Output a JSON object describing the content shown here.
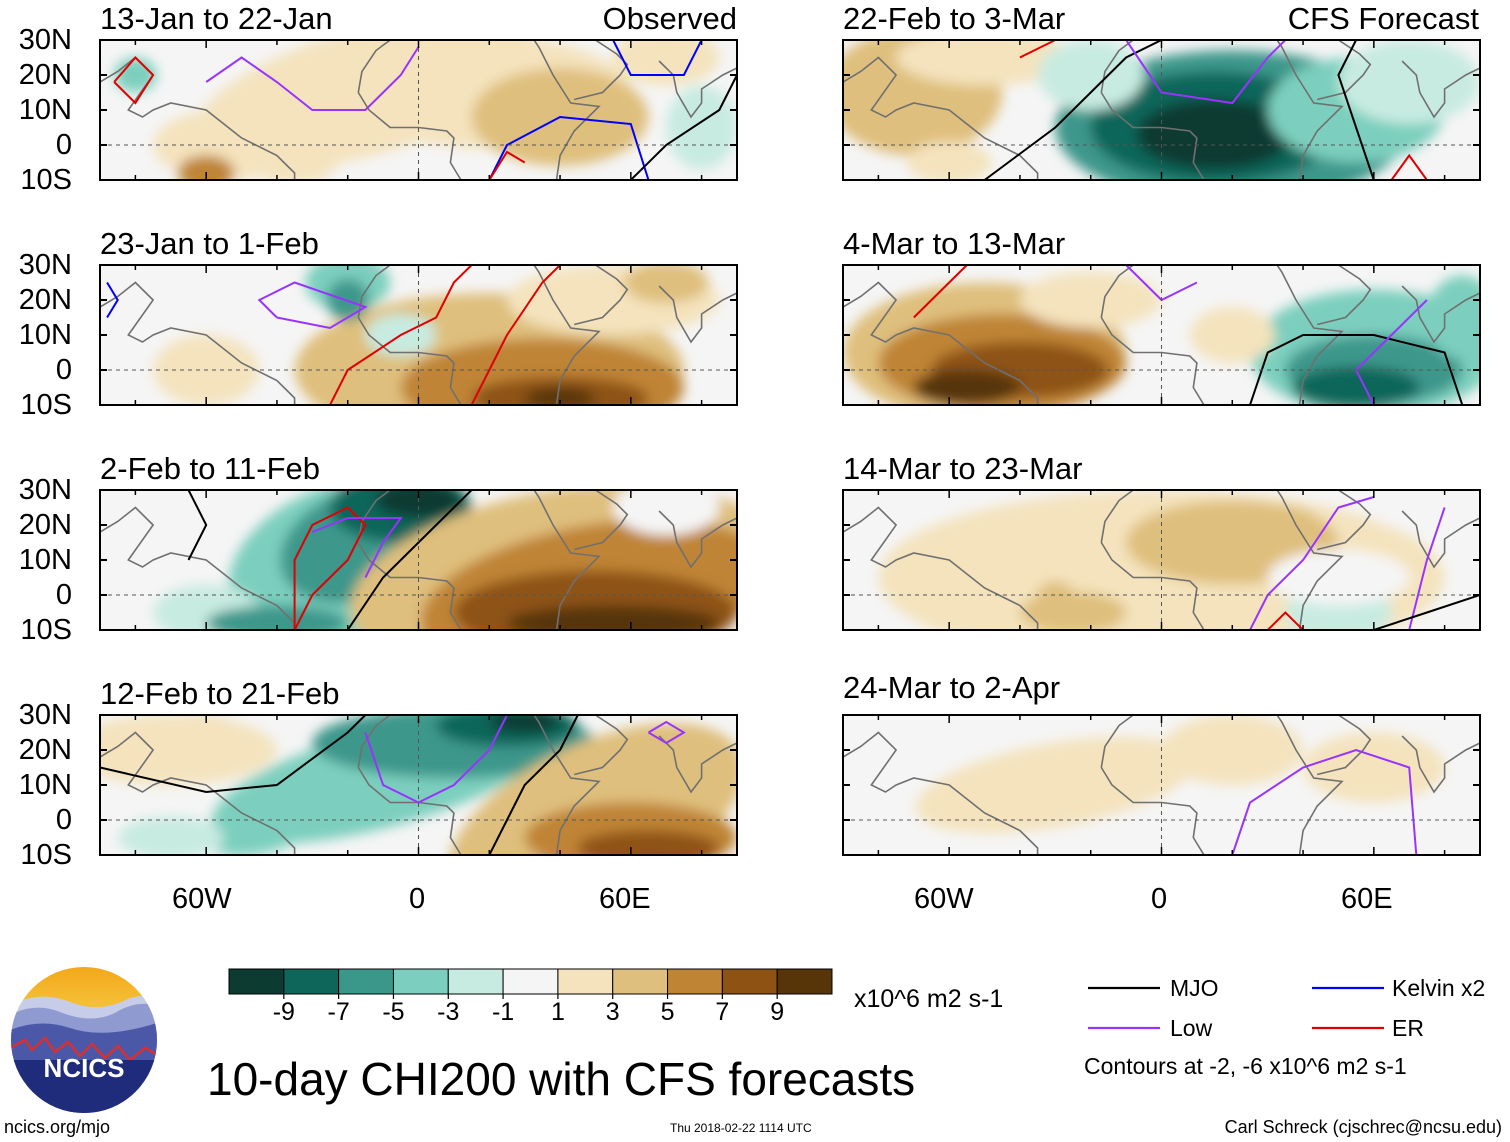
{
  "title": "10-day CHI200 with CFS forecasts",
  "panels": [
    {
      "period": "13-Jan to 22-Jan",
      "tag": "Observed"
    },
    {
      "period": "23-Jan to 1-Feb",
      "tag": ""
    },
    {
      "period": "2-Feb to 11-Feb",
      "tag": ""
    },
    {
      "period": "12-Feb to 21-Feb",
      "tag": ""
    },
    {
      "period": "22-Feb to 3-Mar",
      "tag": "CFS Forecast"
    },
    {
      "period": "4-Mar to 13-Mar",
      "tag": ""
    },
    {
      "period": "14-Mar to 23-Mar",
      "tag": ""
    },
    {
      "period": "24-Mar to 2-Apr",
      "tag": ""
    }
  ],
  "lat_labels": [
    "30N",
    "20N",
    "10N",
    "0",
    "10S"
  ],
  "lon_labels": [
    "60W",
    "0",
    "60E"
  ],
  "colorbar": {
    "ticks": [
      "-9",
      "-7",
      "-5",
      "-3",
      "-1",
      "1",
      "3",
      "5",
      "7",
      "9"
    ],
    "units": "x10^6 m2 s-1",
    "colors": [
      "#0b3b31",
      "#0e665a",
      "#3c978b",
      "#7ccfbe",
      "#c8ebe1",
      "#f5f5f5",
      "#f4e3bd",
      "#dfbf7d",
      "#bf8434",
      "#8e5213",
      "#573509"
    ]
  },
  "legend": {
    "items": [
      {
        "label": "MJO",
        "color": "#000000"
      },
      {
        "label": "Kelvin x2",
        "color": "#0000ff"
      },
      {
        "label": "Low",
        "color": "#9933ff"
      },
      {
        "label": "ER",
        "color": "#e00000"
      }
    ],
    "note": "Contours at -2, -6 x10^6 m2 s-1"
  },
  "logo": {
    "text": "NCICS"
  },
  "footer": {
    "left": "ncics.org/mjo",
    "center": "Thu 2018-02-22 1114 UTC",
    "right": "Carl Schreck (cjschrec@ncsu.edu)"
  }
}
